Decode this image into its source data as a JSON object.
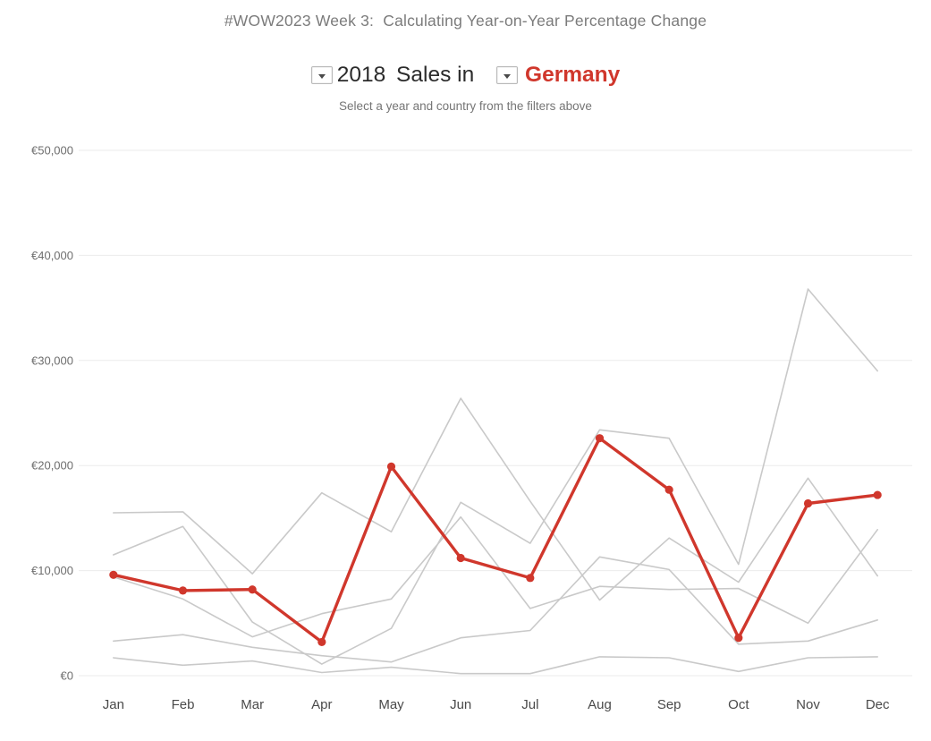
{
  "header": {
    "title": "#WOW2023 Week 3:  Calculating Year-on-Year Percentage Change"
  },
  "filters": {
    "year_value": "2018",
    "between_text": " Sales in ",
    "country_value": "Germany",
    "country_color": "#d0372c",
    "hint": "Select a year and country from the filters above"
  },
  "chart_data": {
    "type": "line",
    "title": "2018 Sales in Germany",
    "currency": "EUR",
    "categories": [
      "Jan",
      "Feb",
      "Mar",
      "Apr",
      "May",
      "Jun",
      "Jul",
      "Aug",
      "Sep",
      "Oct",
      "Nov",
      "Dec"
    ],
    "ylim": [
      0,
      50000
    ],
    "grid": "horizontal",
    "legend_position": "none",
    "y_ticks": [
      {
        "value": 0,
        "label": "€0"
      },
      {
        "value": 10000,
        "label": "€10,000"
      },
      {
        "value": 20000,
        "label": "€20,000"
      },
      {
        "value": 30000,
        "label": "€30,000"
      },
      {
        "value": 40000,
        "label": "€40,000"
      },
      {
        "value": 50000,
        "label": "€50,000"
      }
    ],
    "series": [
      {
        "name": "unlabeled-gray-line-1",
        "role": "context",
        "color": "#c9c9c9",
        "marker": false,
        "values": [
          15500,
          15600,
          9700,
          17400,
          13700,
          26400,
          16600,
          7200,
          13100,
          8900,
          18800,
          9500
        ]
      },
      {
        "name": "unlabeled-gray-line-2",
        "role": "context",
        "color": "#c9c9c9",
        "marker": false,
        "values": [
          11500,
          14200,
          5100,
          1100,
          4500,
          16500,
          12600,
          23400,
          22600,
          10600,
          36800,
          29000
        ]
      },
      {
        "name": "unlabeled-gray-line-3",
        "role": "context",
        "color": "#c9c9c9",
        "marker": false,
        "values": [
          9400,
          7300,
          3700,
          5900,
          7300,
          15100,
          6400,
          8500,
          8200,
          8300,
          5000,
          13900
        ]
      },
      {
        "name": "unlabeled-gray-line-4",
        "role": "context",
        "color": "#c9c9c9",
        "marker": false,
        "values": [
          3300,
          3900,
          2700,
          1900,
          1300,
          3600,
          4300,
          11300,
          10100,
          3000,
          3300,
          5300
        ]
      },
      {
        "name": "unlabeled-gray-line-5",
        "role": "context",
        "color": "#c9c9c9",
        "marker": false,
        "values": [
          1700,
          1000,
          1400,
          300,
          800,
          200,
          200,
          1800,
          1700,
          400,
          1700,
          1800
        ]
      },
      {
        "name": "Germany",
        "role": "selected",
        "color": "#d0372c",
        "marker": true,
        "values": [
          9600,
          8100,
          8200,
          3200,
          19900,
          11200,
          9300,
          22600,
          17700,
          3600,
          16400,
          17200
        ]
      }
    ]
  }
}
